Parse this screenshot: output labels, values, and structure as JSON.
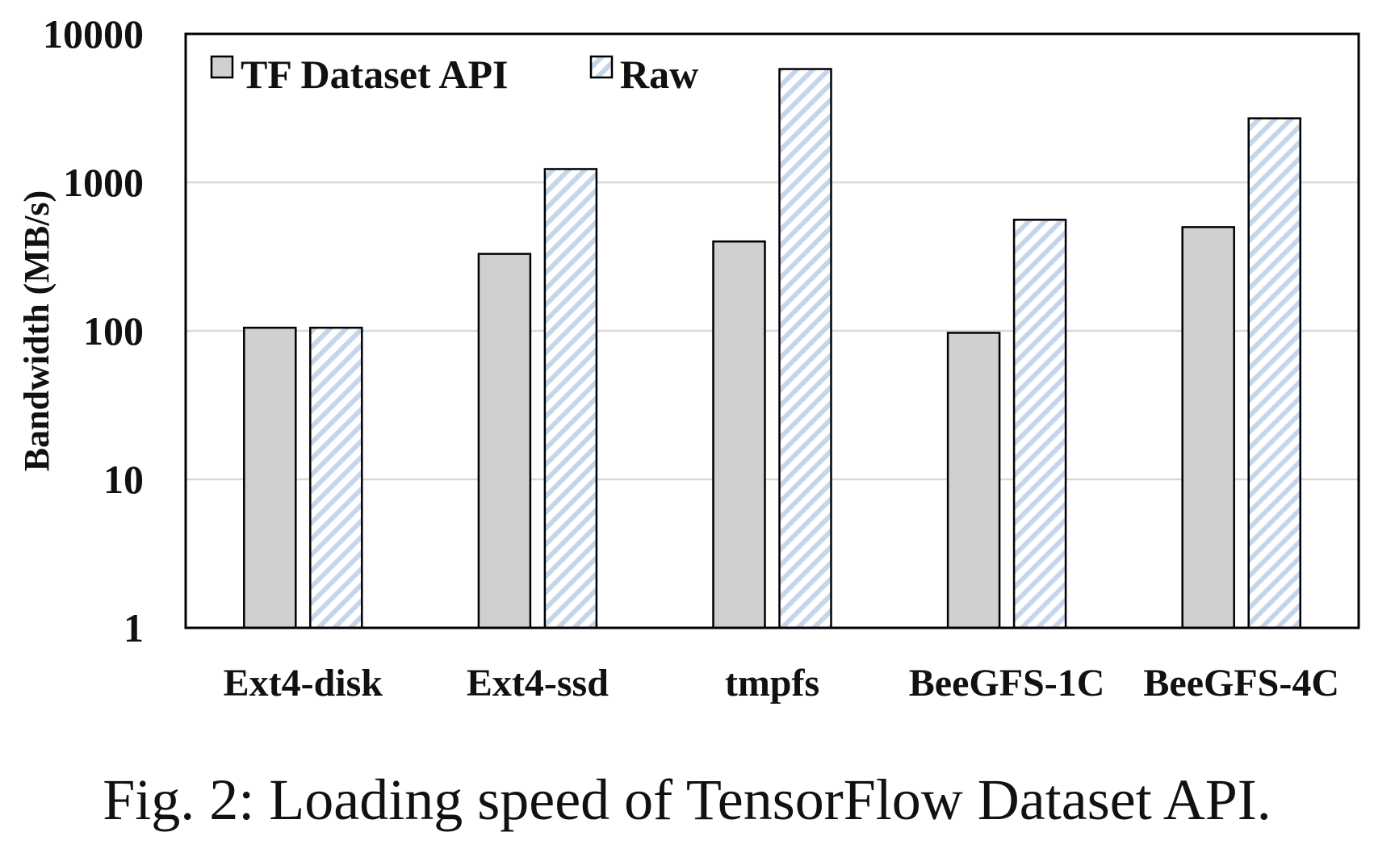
{
  "chart_data": {
    "type": "bar",
    "title": "",
    "xlabel": "",
    "ylabel": "Bandwidth (MB/s)",
    "yscale": "log",
    "ylim": [
      1,
      10000
    ],
    "yticks": [
      "1",
      "10",
      "100",
      "1000",
      "10000"
    ],
    "grid": "horizontal",
    "legend_position": "top-left",
    "categories": [
      "Ext4-disk",
      "Ext4-ssd",
      "tmpfs",
      "BeeGFS-1C",
      "BeeGFS-4C"
    ],
    "series": [
      {
        "name": "TF Dataset API",
        "values": [
          105,
          330,
          400,
          97,
          500
        ],
        "color": "#d0d0d0",
        "pattern": "solid"
      },
      {
        "name": "Raw",
        "values": [
          105,
          1230,
          5800,
          560,
          2700
        ],
        "color": "#c6d6ea",
        "pattern": "diagonal-hatch"
      }
    ]
  },
  "caption": "Fig. 2: Loading speed of TensorFlow Dataset API."
}
